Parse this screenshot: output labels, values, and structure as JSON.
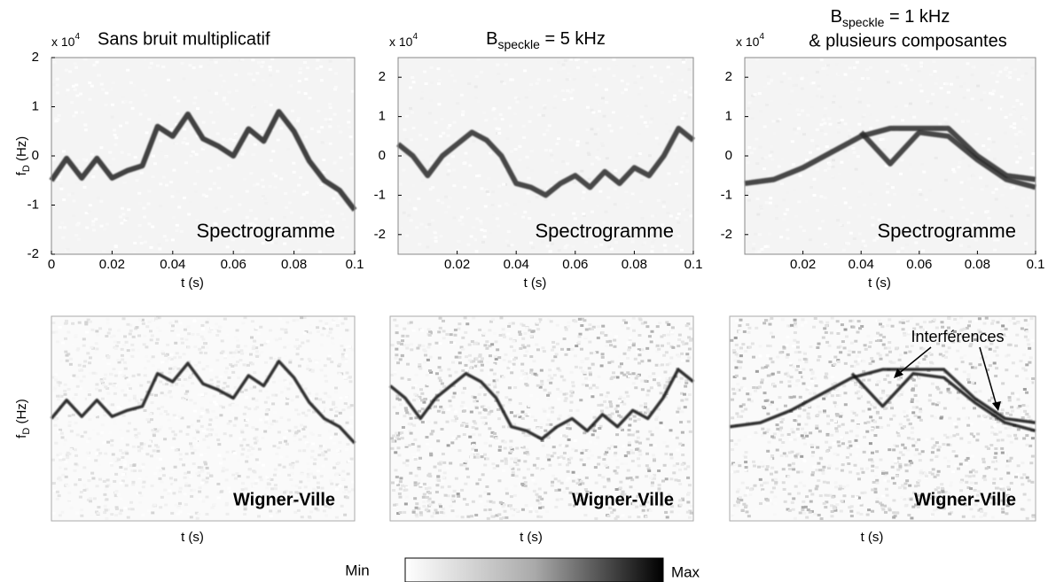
{
  "chart_data": [
    {
      "type": "line",
      "title": "Sans bruit multiplicatif",
      "multiplier": {
        "base": "x 10",
        "exponent": "4"
      },
      "y_label": {
        "main": "f",
        "sub": "D",
        "rest": " (Hz)"
      },
      "x_label": "t (s)",
      "annotation": "Spectrogramme",
      "annotation_color": "#000000",
      "xlim": [
        0,
        0.1
      ],
      "ylim": [
        -2,
        2
      ],
      "xticks": [
        0,
        0.02,
        0.04,
        0.06,
        0.08,
        0.1
      ],
      "yticks": [
        2,
        1,
        0,
        -1,
        -2
      ],
      "x": [
        0,
        0.005,
        0.01,
        0.015,
        0.02,
        0.025,
        0.03,
        0.035,
        0.04,
        0.045,
        0.05,
        0.055,
        0.06,
        0.065,
        0.07,
        0.075,
        0.08,
        0.085,
        0.09,
        0.095,
        0.1
      ],
      "series": [
        {
          "color": "#222222",
          "values": [
            -0.5,
            -0.05,
            -0.45,
            -0.05,
            -0.45,
            -0.3,
            -0.2,
            0.6,
            0.4,
            0.85,
            0.35,
            0.2,
            0.0,
            0.55,
            0.3,
            0.9,
            0.5,
            -0.1,
            -0.5,
            -0.7,
            -1.1
          ]
        }
      ]
    },
    {
      "type": "line",
      "title": {
        "text": "B",
        "sub": "speckle",
        "rest": " = 5 kHz"
      },
      "multiplier": {
        "base": "x 10",
        "exponent": "4"
      },
      "x_label": "t (s)",
      "annotation": "Spectrogramme",
      "annotation_color": "#000000",
      "xlim": [
        0,
        0.1
      ],
      "ylim": [
        -2.5,
        2.5
      ],
      "xticks": [
        0.02,
        0.04,
        0.06,
        0.08,
        0.1
      ],
      "yticks": [
        2,
        1,
        0,
        -1,
        -2
      ],
      "x": [
        0,
        0.005,
        0.01,
        0.015,
        0.02,
        0.025,
        0.03,
        0.035,
        0.04,
        0.045,
        0.05,
        0.055,
        0.06,
        0.065,
        0.07,
        0.075,
        0.08,
        0.085,
        0.09,
        0.095,
        0.1
      ],
      "series": [
        {
          "color": "#2a2a2a",
          "values": [
            0.3,
            0.0,
            -0.5,
            0.0,
            0.3,
            0.6,
            0.4,
            0.0,
            -0.7,
            -0.8,
            -1.0,
            -0.7,
            -0.5,
            -0.8,
            -0.4,
            -0.7,
            -0.3,
            -0.5,
            0.0,
            0.7,
            0.4
          ]
        }
      ]
    },
    {
      "type": "line",
      "title": {
        "text": "B",
        "sub": "speckle",
        "rest": " = 1 kHz"
      },
      "subtitle": "& plusieurs composantes",
      "multiplier": {
        "base": "x 10",
        "exponent": "4"
      },
      "x_label": "t (s)",
      "annotation": "Spectrogramme",
      "annotation_color": "#000000",
      "xlim": [
        0,
        0.1
      ],
      "ylim": [
        -2.5,
        2.5
      ],
      "xticks": [
        0.02,
        0.04,
        0.06,
        0.08,
        0.1
      ],
      "yticks": [
        2,
        1,
        0,
        -1,
        -2
      ],
      "x": [
        0,
        0.01,
        0.02,
        0.03,
        0.04,
        0.05,
        0.06,
        0.07,
        0.08,
        0.09,
        0.1
      ],
      "series": [
        {
          "color": "#2a2a2a",
          "values": [
            -0.7,
            -0.6,
            -0.3,
            0.1,
            0.5,
            0.7,
            0.7,
            0.7,
            0.0,
            -0.5,
            -0.6
          ]
        },
        {
          "color": "#2a2a2a",
          "values": [
            null,
            null,
            null,
            null,
            0.6,
            -0.2,
            0.6,
            0.5,
            -0.1,
            -0.6,
            -0.8
          ]
        }
      ]
    },
    {
      "type": "line",
      "y_label": {
        "main": "f",
        "sub": "D",
        "rest": " (Hz)"
      },
      "x_label": "t (s)",
      "annotation": "Wigner-Ville",
      "annotation_color": "#1e6fe0",
      "xlim": [
        0,
        0.1
      ],
      "ylim": [
        -3,
        2
      ],
      "x": [
        0,
        0.005,
        0.01,
        0.015,
        0.02,
        0.025,
        0.03,
        0.035,
        0.04,
        0.045,
        0.05,
        0.055,
        0.06,
        0.065,
        0.07,
        0.075,
        0.08,
        0.085,
        0.09,
        0.095,
        0.1
      ],
      "series": [
        {
          "color": "#111111",
          "values": [
            -0.5,
            -0.05,
            -0.45,
            -0.05,
            -0.45,
            -0.3,
            -0.2,
            0.6,
            0.4,
            0.85,
            0.35,
            0.2,
            0.0,
            0.55,
            0.3,
            0.9,
            0.5,
            -0.1,
            -0.5,
            -0.7,
            -1.1
          ]
        }
      ]
    },
    {
      "type": "line",
      "x_label": "t (s)",
      "annotation": "Wigner-Ville",
      "annotation_color": "#e8201f",
      "xlim": [
        0,
        0.1
      ],
      "ylim": [
        -3,
        2
      ],
      "x": [
        0,
        0.005,
        0.01,
        0.015,
        0.02,
        0.025,
        0.03,
        0.035,
        0.04,
        0.045,
        0.05,
        0.055,
        0.06,
        0.065,
        0.07,
        0.075,
        0.08,
        0.085,
        0.09,
        0.095,
        0.1
      ],
      "series": [
        {
          "color": "#111111",
          "values": [
            0.3,
            0.0,
            -0.5,
            0.0,
            0.3,
            0.6,
            0.4,
            0.0,
            -0.7,
            -0.8,
            -1.0,
            -0.7,
            -0.5,
            -0.8,
            -0.4,
            -0.7,
            -0.3,
            -0.5,
            0.0,
            0.7,
            0.4
          ]
        }
      ]
    },
    {
      "type": "line",
      "x_label": "t (s)",
      "annotation": "Wigner-Ville",
      "annotation_color": "#e8201f",
      "callout": "Interférences",
      "xlim": [
        0,
        0.1
      ],
      "ylim": [
        -3,
        2
      ],
      "x": [
        0,
        0.01,
        0.02,
        0.03,
        0.04,
        0.05,
        0.06,
        0.07,
        0.08,
        0.09,
        0.1
      ],
      "series": [
        {
          "color": "#111111",
          "values": [
            -0.7,
            -0.6,
            -0.3,
            0.1,
            0.5,
            0.7,
            0.7,
            0.7,
            0.0,
            -0.5,
            -0.6
          ]
        },
        {
          "color": "#111111",
          "values": [
            null,
            null,
            null,
            null,
            0.6,
            -0.2,
            0.6,
            0.5,
            -0.1,
            -0.6,
            -0.8
          ]
        }
      ]
    }
  ],
  "colorbar": {
    "min_label": "Min",
    "max_label": "Max"
  }
}
